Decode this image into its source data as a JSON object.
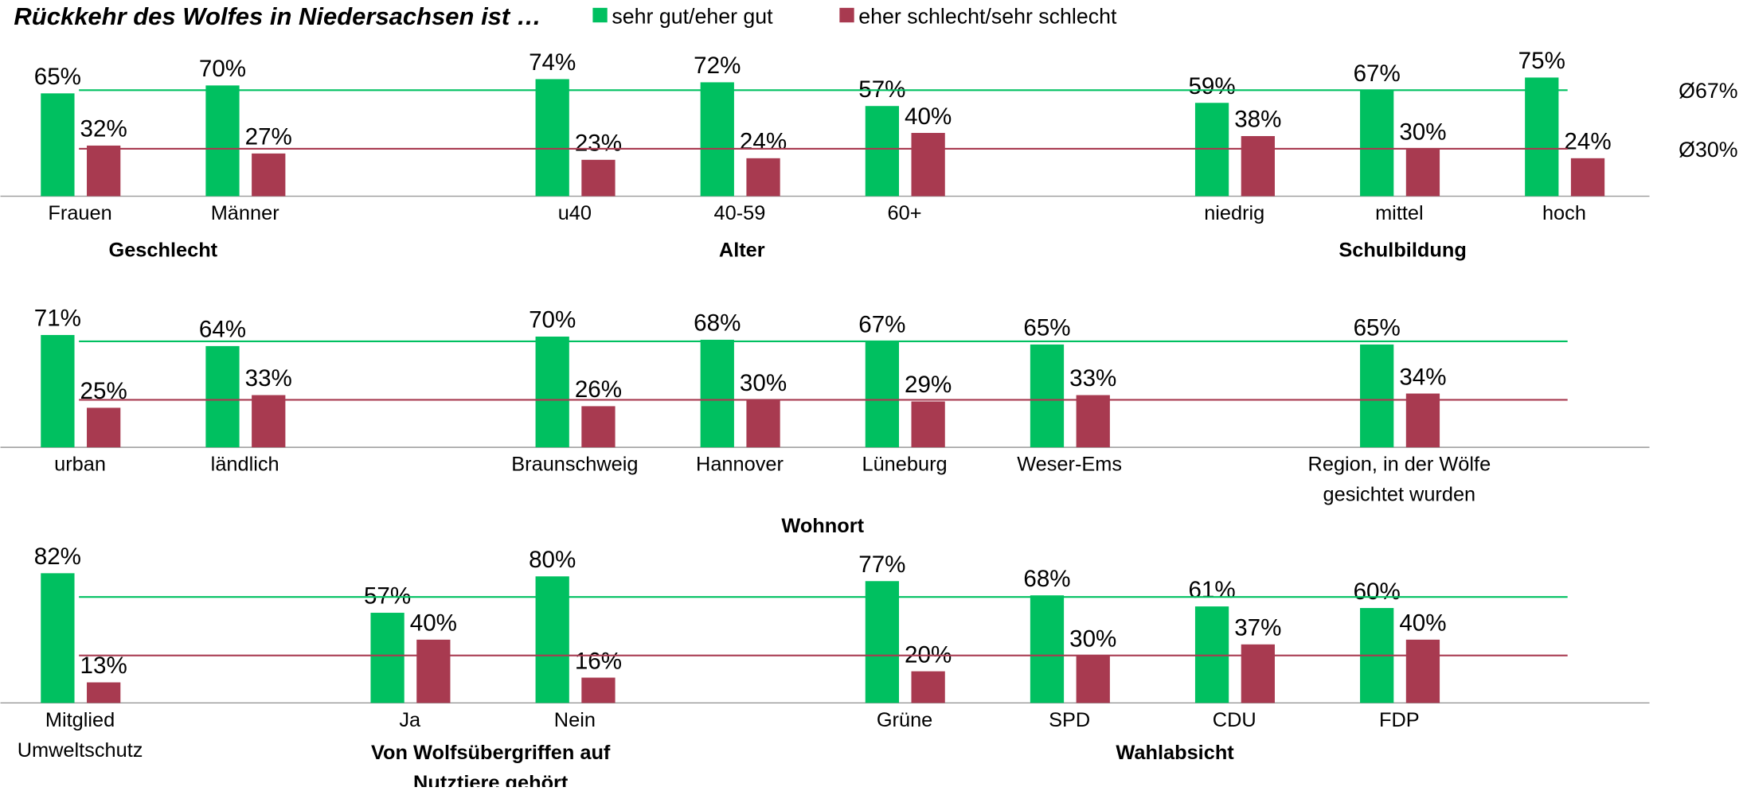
{
  "chart_data": [
    {
      "type": "bar",
      "title": "Rückkehr des Wolfes in Niedersachsen ist …",
      "categories": [
        "Frauen",
        "Männer",
        null,
        "u40",
        "40-59",
        "60+",
        null,
        "niedrig",
        "mittel",
        "hoch"
      ],
      "groups": [
        "Geschlecht",
        "Alter",
        "Schulbildung"
      ],
      "series": [
        {
          "name": "sehr gut/eher gut",
          "color": "#00c060",
          "values": [
            65,
            70,
            null,
            74,
            72,
            57,
            null,
            59,
            67,
            75
          ],
          "value_labels": [
            "65%",
            "70%",
            null,
            "74%",
            "72%",
            "57%",
            null,
            "59%",
            "67%",
            "75%"
          ]
        },
        {
          "name": "eher schlecht/sehr schlecht",
          "color": "#a83a50",
          "values": [
            32,
            27,
            null,
            23,
            24,
            40,
            null,
            38,
            30,
            24
          ],
          "value_labels": [
            "32%",
            "27%",
            null,
            "23%",
            "24%",
            "40%",
            null,
            "38%",
            "30%",
            "24%"
          ]
        }
      ],
      "reference_lines": [
        {
          "value": 67,
          "label": "Ø67%",
          "color": "#00c060"
        },
        {
          "value": 30,
          "label": "Ø30%",
          "color": "#a83a50"
        }
      ],
      "ylim": [
        0,
        90
      ]
    },
    {
      "type": "bar",
      "categories": [
        "urban",
        "ländlich",
        null,
        "Braunschweig",
        "Hannover",
        "Lüneburg",
        "Weser-Ems",
        null,
        "Region, in der Wölfe\ngesichtet wurden"
      ],
      "groups": [
        "Wohnort"
      ],
      "series": [
        {
          "name": "sehr gut/eher gut",
          "color": "#00c060",
          "values": [
            71,
            64,
            null,
            70,
            68,
            67,
            65,
            null,
            65
          ],
          "value_labels": [
            "71%",
            "64%",
            null,
            "70%",
            "68%",
            "67%",
            "65%",
            null,
            "65%"
          ]
        },
        {
          "name": "eher schlecht/sehr schlecht",
          "color": "#a83a50",
          "values": [
            25,
            33,
            null,
            26,
            30,
            29,
            33,
            null,
            34
          ],
          "value_labels": [
            "25%",
            "33%",
            null,
            "26%",
            "30%",
            "29%",
            "33%",
            null,
            "34%"
          ]
        }
      ],
      "reference_lines": [
        {
          "value": 67,
          "color": "#00c060"
        },
        {
          "value": 30,
          "color": "#a83a50"
        }
      ],
      "ylim": [
        0,
        90
      ]
    },
    {
      "type": "bar",
      "categories": [
        "Mitglied\nUmweltschutz",
        null,
        "Ja",
        "Nein",
        null,
        "Grüne",
        "SPD",
        "CDU",
        "FDP"
      ],
      "groups": [
        "Von Wolfsübergriffen auf\nNutztiere gehört",
        "Wahlabsicht"
      ],
      "series": [
        {
          "name": "sehr gut/eher gut",
          "color": "#00c060",
          "values": [
            82,
            null,
            57,
            80,
            null,
            77,
            68,
            61,
            60
          ],
          "value_labels": [
            "82%",
            null,
            "57%",
            "80%",
            null,
            "77%",
            "68%",
            "61%",
            "60%"
          ]
        },
        {
          "name": "eher schlecht/sehr schlecht",
          "color": "#a83a50",
          "values": [
            13,
            null,
            40,
            16,
            null,
            20,
            30,
            37,
            40
          ],
          "value_labels": [
            "13%",
            null,
            "40%",
            "16%",
            null,
            "20%",
            "30%",
            "37%",
            "40%"
          ]
        }
      ],
      "reference_lines": [
        {
          "value": 67,
          "color": "#00c060"
        },
        {
          "value": 30,
          "color": "#a83a50"
        }
      ],
      "ylim": [
        0,
        90
      ]
    }
  ]
}
